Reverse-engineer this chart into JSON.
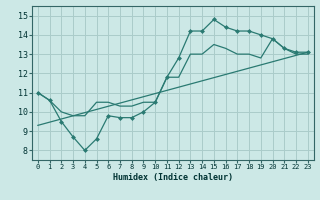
{
  "xlabel": "Humidex (Indice chaleur)",
  "bg_color": "#cce8e6",
  "grid_color": "#aaccca",
  "line_color": "#2a7a72",
  "xlim": [
    -0.5,
    23.5
  ],
  "ylim": [
    7.5,
    15.5
  ],
  "xticks": [
    0,
    1,
    2,
    3,
    4,
    5,
    6,
    7,
    8,
    9,
    10,
    11,
    12,
    13,
    14,
    15,
    16,
    17,
    18,
    19,
    20,
    21,
    22,
    23
  ],
  "yticks": [
    8,
    9,
    10,
    11,
    12,
    13,
    14,
    15
  ],
  "line1_x": [
    0,
    1,
    2,
    3,
    4,
    5,
    6,
    7,
    8,
    9,
    10,
    11,
    12,
    13,
    14,
    15,
    16,
    17,
    18,
    19,
    20,
    21,
    22,
    23
  ],
  "line1_y": [
    11.0,
    10.6,
    9.5,
    8.7,
    8.0,
    8.6,
    9.8,
    9.7,
    9.7,
    10.0,
    10.5,
    11.8,
    12.8,
    14.2,
    14.2,
    14.8,
    14.4,
    14.2,
    14.2,
    14.0,
    13.8,
    13.3,
    13.1,
    13.1
  ],
  "line2_x": [
    0,
    1,
    2,
    3,
    4,
    5,
    6,
    7,
    8,
    9,
    10,
    11,
    12,
    13,
    14,
    15,
    16,
    17,
    18,
    19,
    20,
    21,
    22,
    23
  ],
  "line2_y": [
    11.0,
    10.6,
    10.0,
    9.8,
    9.8,
    10.5,
    10.5,
    10.3,
    10.3,
    10.5,
    10.5,
    11.8,
    11.8,
    13.0,
    13.0,
    13.5,
    13.3,
    13.0,
    13.0,
    12.8,
    13.8,
    13.3,
    13.0,
    13.0
  ],
  "line3_x": [
    0,
    23
  ],
  "line3_y": [
    9.3,
    13.1
  ]
}
